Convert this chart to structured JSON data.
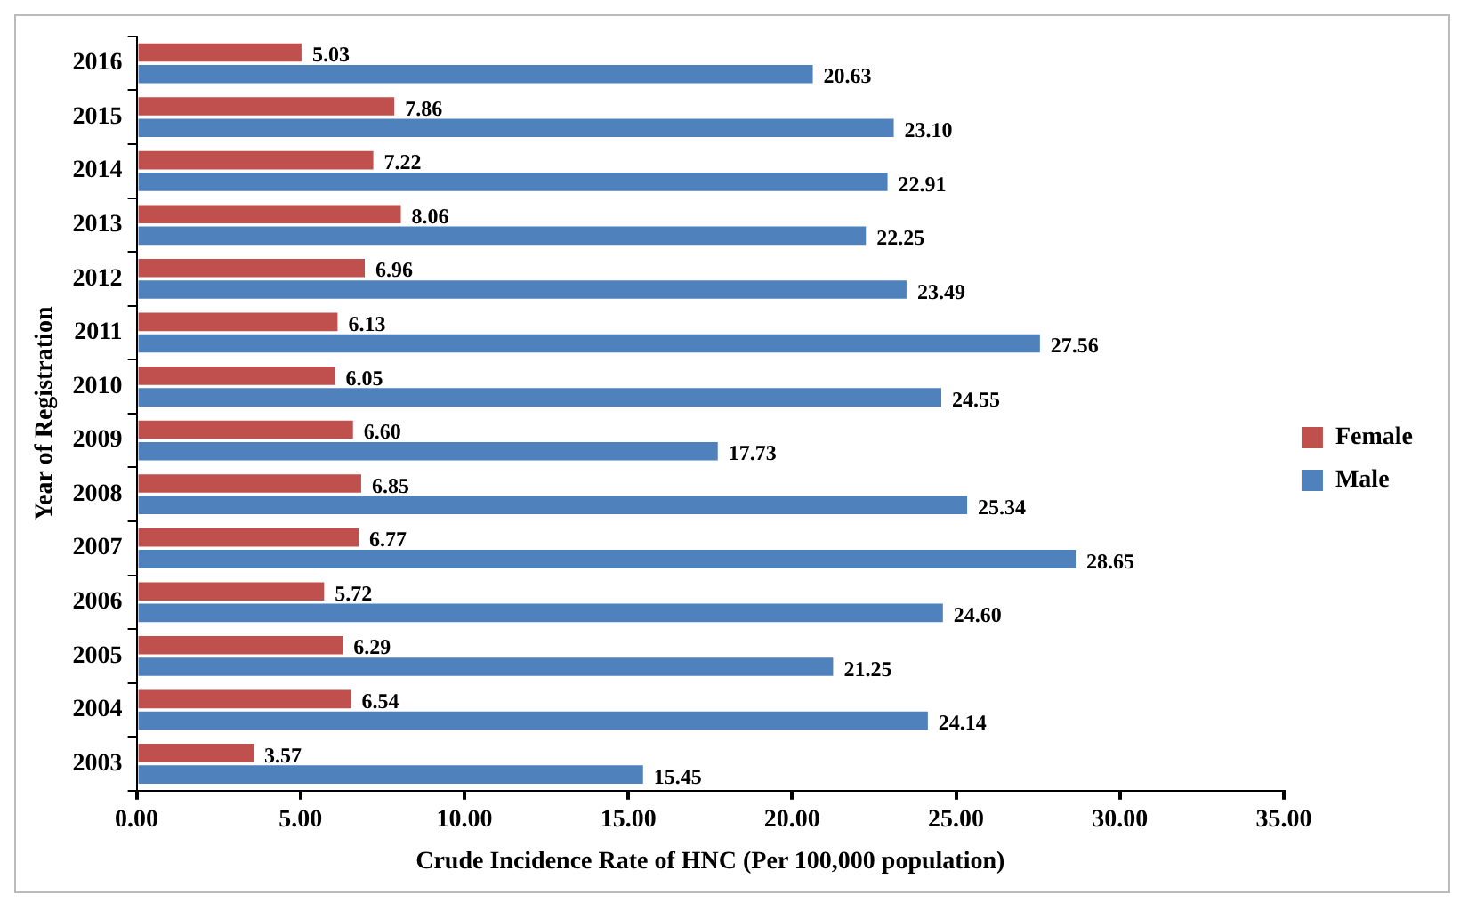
{
  "chart_data": {
    "type": "bar",
    "orientation": "horizontal",
    "xlabel": "Crude Incidence Rate of HNC (Per 100,000 population)",
    "ylabel": "Year of Registration",
    "categories": [
      "2016",
      "2015",
      "2014",
      "2013",
      "2012",
      "2011",
      "2010",
      "2009",
      "2008",
      "2007",
      "2006",
      "2005",
      "2004",
      "2003"
    ],
    "series": [
      {
        "name": "Female",
        "color": "#c0504d",
        "values": [
          5.03,
          7.86,
          7.22,
          8.06,
          6.96,
          6.13,
          6.05,
          6.6,
          6.85,
          6.77,
          5.72,
          6.29,
          6.54,
          3.57
        ],
        "value_labels": [
          "5.03",
          "7.86",
          "7.22",
          "8.06",
          "6.96",
          "6.13",
          "6.05",
          "6.60",
          "6.85",
          "6.77",
          "5.72",
          "6.29",
          "6.54",
          "3.57"
        ]
      },
      {
        "name": "Male",
        "color": "#4f81bd",
        "values": [
          20.63,
          23.1,
          22.91,
          22.25,
          23.49,
          27.56,
          24.55,
          17.73,
          25.34,
          28.65,
          24.6,
          21.25,
          24.14,
          15.45
        ],
        "value_labels": [
          "20.63",
          "23.10",
          "22.91",
          "22.25",
          "23.49",
          "27.56",
          "24.55",
          "17.73",
          "25.34",
          "28.65",
          "24.60",
          "21.25",
          "24.14",
          "15.45"
        ]
      }
    ],
    "xlim": [
      0,
      35
    ],
    "xticks": [
      {
        "value": 0,
        "label": "0.00"
      },
      {
        "value": 5,
        "label": "5.00"
      },
      {
        "value": 10,
        "label": "10.00"
      },
      {
        "value": 15,
        "label": "15.00"
      },
      {
        "value": 20,
        "label": "20.00"
      },
      {
        "value": 25,
        "label": "25.00"
      },
      {
        "value": 30,
        "label": "30.00"
      },
      {
        "value": 35,
        "label": "35.00"
      }
    ],
    "grid": false,
    "legend": "right"
  }
}
